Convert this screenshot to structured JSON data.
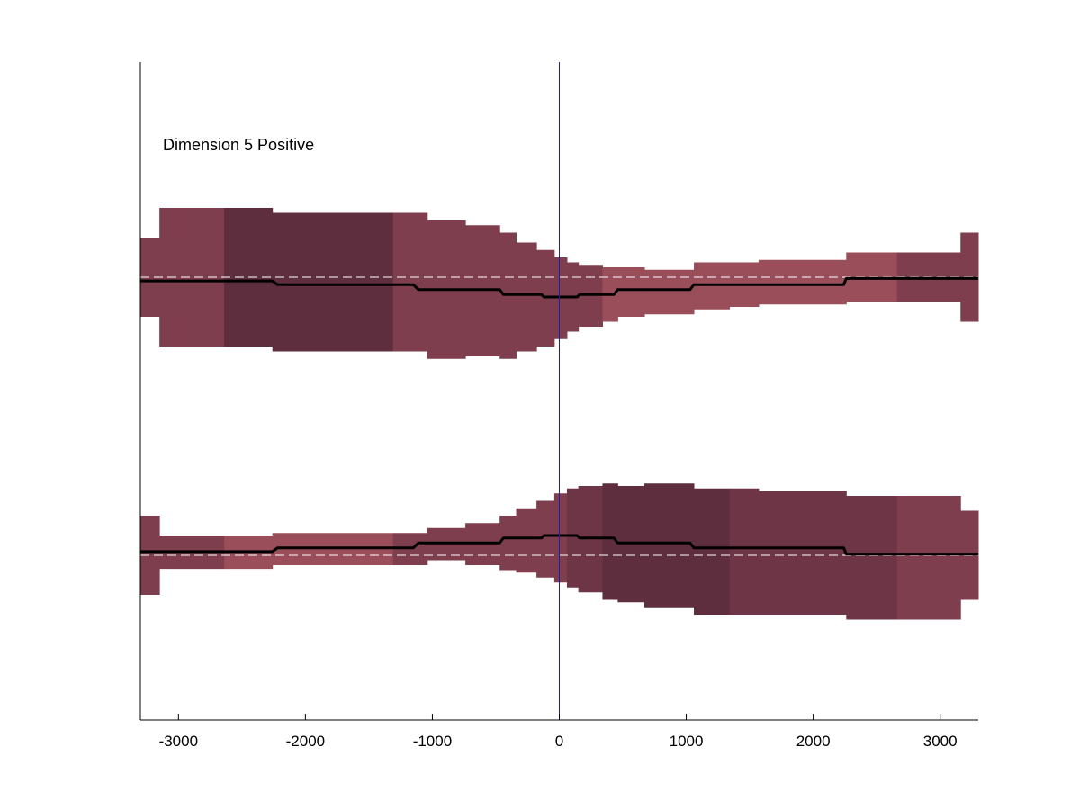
{
  "chart_data": {
    "type": "area",
    "title": "Dimension 5 Positive",
    "xlabel": "",
    "ylabel": "",
    "xlim": [
      -3300,
      3300
    ],
    "xticks": [
      -3000,
      -2000,
      -1000,
      0,
      1000,
      2000,
      3000
    ],
    "tick_labels": [
      "-3000",
      "-2000",
      "-1000",
      "0",
      "1000",
      "2000",
      "3000"
    ],
    "grid": false,
    "legend": "none",
    "vline_x": 0,
    "colors": {
      "band_dark": "#5e2e3e",
      "band_mid": "#6d3546",
      "band_medium": "#7e3e4d",
      "band_light": "#994e5a",
      "line": "#000000",
      "baseline": "#ffffff",
      "vline": "#2020a0",
      "axis": "#000000"
    },
    "panels": [
      {
        "name": "upper",
        "baseline": 0,
        "ylim": [
          -8,
          9
        ],
        "segments": [
          {
            "x0": -3300,
            "x1": -3150,
            "low": -1.6,
            "high": 1.6,
            "shade": "medium"
          },
          {
            "x0": -3150,
            "x1": -2640,
            "low": -2.8,
            "high": 2.8,
            "shade": "medium"
          },
          {
            "x0": -2640,
            "x1": -2260,
            "low": -2.8,
            "high": 2.8,
            "shade": "dark"
          },
          {
            "x0": -2260,
            "x1": -1310,
            "low": -3.0,
            "high": 2.6,
            "shade": "dark"
          },
          {
            "x0": -1310,
            "x1": -1040,
            "low": -3.0,
            "high": 2.6,
            "shade": "medium"
          },
          {
            "x0": -1040,
            "x1": -740,
            "low": -3.3,
            "high": 2.3,
            "shade": "medium"
          },
          {
            "x0": -740,
            "x1": -470,
            "low": -3.2,
            "high": 2.1,
            "shade": "medium"
          },
          {
            "x0": -470,
            "x1": -340,
            "low": -3.3,
            "high": 1.8,
            "shade": "medium"
          },
          {
            "x0": -340,
            "x1": -180,
            "low": -3.0,
            "high": 1.4,
            "shade": "medium"
          },
          {
            "x0": -180,
            "x1": -40,
            "low": -2.8,
            "high": 1.1,
            "shade": "medium"
          },
          {
            "x0": -40,
            "x1": 60,
            "low": -2.5,
            "high": 0.8,
            "shade": "medium"
          },
          {
            "x0": 60,
            "x1": 150,
            "low": -2.2,
            "high": 0.6,
            "shade": "medium"
          },
          {
            "x0": 150,
            "x1": 340,
            "low": -2.0,
            "high": 0.5,
            "shade": "medium"
          },
          {
            "x0": 340,
            "x1": 460,
            "low": -1.8,
            "high": 0.4,
            "shade": "light"
          },
          {
            "x0": 460,
            "x1": 670,
            "low": -1.6,
            "high": 0.4,
            "shade": "light"
          },
          {
            "x0": 670,
            "x1": 1060,
            "low": -1.5,
            "high": 0.3,
            "shade": "light"
          },
          {
            "x0": 1060,
            "x1": 1340,
            "low": -1.3,
            "high": 0.6,
            "shade": "light"
          },
          {
            "x0": 1340,
            "x1": 1570,
            "low": -1.2,
            "high": 0.6,
            "shade": "light"
          },
          {
            "x0": 1570,
            "x1": 2260,
            "low": -1.1,
            "high": 0.7,
            "shade": "light"
          },
          {
            "x0": 2260,
            "x1": 2660,
            "low": -1.0,
            "high": 1.0,
            "shade": "light"
          },
          {
            "x0": 2660,
            "x1": 3160,
            "low": -1.0,
            "high": 1.0,
            "shade": "medium"
          },
          {
            "x0": 3160,
            "x1": 3300,
            "low": -1.8,
            "high": 1.8,
            "shade": "medium"
          }
        ],
        "line": {
          "x": [
            -3300,
            -2260,
            -2220,
            -1150,
            -1110,
            -470,
            -440,
            -140,
            -120,
            140,
            160,
            430,
            460,
            1030,
            1060,
            2240,
            2260,
            3300
          ],
          "y": [
            -0.15,
            -0.15,
            -0.3,
            -0.3,
            -0.5,
            -0.5,
            -0.7,
            -0.7,
            -0.8,
            -0.8,
            -0.7,
            -0.7,
            -0.5,
            -0.5,
            -0.3,
            -0.3,
            -0.05,
            -0.05
          ]
        }
      },
      {
        "name": "lower",
        "baseline": 0,
        "ylim": [
          -8,
          9
        ],
        "segments": [
          {
            "x0": -3300,
            "x1": -3150,
            "low": -1.6,
            "high": 1.6,
            "shade": "medium"
          },
          {
            "x0": -3150,
            "x1": -2640,
            "low": -0.55,
            "high": 0.8,
            "shade": "medium"
          },
          {
            "x0": -2640,
            "x1": -2260,
            "low": -0.55,
            "high": 0.8,
            "shade": "light"
          },
          {
            "x0": -2260,
            "x1": -1310,
            "low": -0.4,
            "high": 0.9,
            "shade": "light"
          },
          {
            "x0": -1310,
            "x1": -1040,
            "low": -0.4,
            "high": 0.9,
            "shade": "medium"
          },
          {
            "x0": -1040,
            "x1": -740,
            "low": -0.2,
            "high": 1.1,
            "shade": "medium"
          },
          {
            "x0": -740,
            "x1": -470,
            "low": -0.4,
            "high": 1.3,
            "shade": "medium"
          },
          {
            "x0": -470,
            "x1": -340,
            "low": -0.6,
            "high": 1.6,
            "shade": "medium"
          },
          {
            "x0": -340,
            "x1": -180,
            "low": -0.7,
            "high": 1.9,
            "shade": "medium"
          },
          {
            "x0": -180,
            "x1": -40,
            "low": -0.9,
            "high": 2.2,
            "shade": "medium"
          },
          {
            "x0": -40,
            "x1": 60,
            "low": -1.1,
            "high": 2.5,
            "shade": "medium"
          },
          {
            "x0": 60,
            "x1": 150,
            "low": -1.3,
            "high": 2.7,
            "shade": "mid"
          },
          {
            "x0": 150,
            "x1": 340,
            "low": -1.5,
            "high": 2.8,
            "shade": "mid"
          },
          {
            "x0": 340,
            "x1": 460,
            "low": -1.8,
            "high": 2.9,
            "shade": "dark"
          },
          {
            "x0": 460,
            "x1": 670,
            "low": -1.9,
            "high": 2.8,
            "shade": "dark"
          },
          {
            "x0": 670,
            "x1": 1060,
            "low": -2.1,
            "high": 2.9,
            "shade": "dark"
          },
          {
            "x0": 1060,
            "x1": 1340,
            "low": -2.4,
            "high": 2.7,
            "shade": "dark"
          },
          {
            "x0": 1340,
            "x1": 1570,
            "low": -2.4,
            "high": 2.7,
            "shade": "mid"
          },
          {
            "x0": 1570,
            "x1": 2260,
            "low": -2.4,
            "high": 2.6,
            "shade": "mid"
          },
          {
            "x0": 2260,
            "x1": 2660,
            "low": -2.6,
            "high": 2.4,
            "shade": "mid"
          },
          {
            "x0": 2660,
            "x1": 3160,
            "low": -2.6,
            "high": 2.4,
            "shade": "medium"
          },
          {
            "x0": 3160,
            "x1": 3300,
            "low": -1.8,
            "high": 1.8,
            "shade": "medium"
          }
        ],
        "line": {
          "x": [
            -3300,
            -2260,
            -2220,
            -1150,
            -1110,
            -470,
            -440,
            -140,
            -120,
            140,
            160,
            430,
            460,
            1030,
            1060,
            2240,
            2260,
            3300
          ],
          "y": [
            0.15,
            0.15,
            0.3,
            0.3,
            0.5,
            0.5,
            0.7,
            0.7,
            0.8,
            0.8,
            0.7,
            0.7,
            0.5,
            0.5,
            0.3,
            0.3,
            0.05,
            0.05
          ]
        }
      }
    ]
  }
}
